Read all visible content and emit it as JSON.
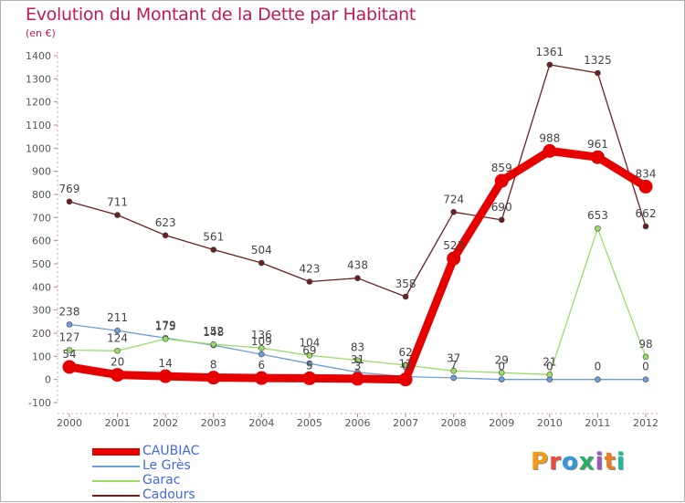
{
  "header": {
    "title": "Evolution du Montant de la Dette par Habitant",
    "unit": "(en €)"
  },
  "logo": {
    "text": "Proxiti",
    "colors": [
      "#f39c12",
      "#e74c3c",
      "#3498db",
      "#27ae60",
      "#9b59b6",
      "#e67e22",
      "#1abc9c"
    ]
  },
  "chart_data": {
    "type": "line",
    "title": "Evolution du Montant de la Dette par Habitant",
    "subtitle": "(en €)",
    "xlabel": "",
    "ylabel": "",
    "x": [
      "2000",
      "2001",
      "2002",
      "2003",
      "2004",
      "2005",
      "2006",
      "2007",
      "2008",
      "2009",
      "2010",
      "2011",
      "2012"
    ],
    "ylim": [
      -100,
      1400
    ],
    "yticks": [
      -100,
      0,
      100,
      200,
      300,
      400,
      500,
      600,
      700,
      800,
      900,
      1000,
      1100,
      1200,
      1300,
      1400
    ],
    "grid": false,
    "legend_position": "bottom-left",
    "series": [
      {
        "name": "CAUBIAC",
        "color": "#e60000",
        "values": [
          54,
          20,
          14,
          8,
          6,
          5,
          3,
          0,
          523,
          859,
          988,
          961,
          834
        ],
        "labels": [
          "54",
          "20",
          "14",
          "8",
          "6",
          "5",
          "3",
          "0",
          "523",
          "859",
          "988",
          "961",
          "834"
        ]
      },
      {
        "name": "Le Grès",
        "color": "#6a9fd8",
        "values": [
          238,
          211,
          179,
          148,
          109,
          69,
          31,
          12,
          7,
          0,
          0,
          0,
          0
        ],
        "labels": [
          "238",
          "211",
          "179",
          "148",
          "109",
          "69",
          "31",
          "12",
          "7",
          "0",
          "0",
          "0",
          "0"
        ]
      },
      {
        "name": "Garac",
        "color": "#99dd66",
        "values": [
          127,
          124,
          175,
          152,
          136,
          104,
          83,
          62,
          37,
          29,
          21,
          653,
          98
        ],
        "labels": [
          "127",
          "124",
          "175",
          "152",
          "136",
          "104",
          "83",
          "62",
          "37",
          "29",
          "21",
          "653",
          "98"
        ]
      },
      {
        "name": "Cadours",
        "color": "#6b2020",
        "values": [
          769,
          711,
          623,
          561,
          504,
          423,
          438,
          358,
          724,
          690,
          1361,
          1325,
          662
        ],
        "labels": [
          "769",
          "711",
          "623",
          "561",
          "504",
          "423",
          "438",
          "358",
          "724",
          "690",
          "1361",
          "1325",
          "662"
        ]
      }
    ]
  }
}
